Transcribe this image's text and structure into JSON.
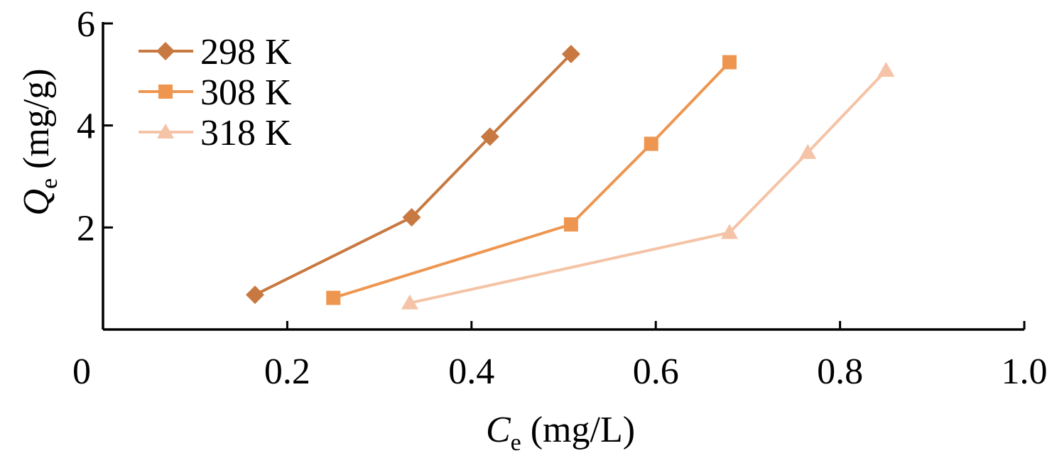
{
  "chart_data": {
    "type": "line",
    "xlabel": {
      "symbol": "C",
      "subscript": "e",
      "unit": " (mg/L)"
    },
    "ylabel": {
      "symbol": "Q",
      "subscript": "e",
      "unit": " (mg/g)"
    },
    "xlim": [
      0,
      1.0
    ],
    "ylim": [
      0,
      6
    ],
    "xticks": [
      0,
      0.2,
      0.4,
      0.6,
      0.8,
      1.0
    ],
    "xtick_labels": [
      "0",
      "0.2",
      "0.4",
      "0.6",
      "0.8",
      "1.0"
    ],
    "yticks": [
      2,
      4,
      6
    ],
    "ytick_labels": [
      "2",
      "4",
      "6"
    ],
    "grid": false,
    "legend_position": "top-left",
    "series": [
      {
        "name": "298 K",
        "color": "#C87941",
        "marker": "diamond",
        "x": [
          0.165,
          0.335,
          0.42,
          0.508
        ],
        "y": [
          0.68,
          2.2,
          3.78,
          5.4
        ]
      },
      {
        "name": "308 K",
        "color": "#EE9650",
        "marker": "square",
        "x": [
          0.25,
          0.508,
          0.595,
          0.68
        ],
        "y": [
          0.62,
          2.06,
          3.64,
          5.24
        ]
      },
      {
        "name": "318 K",
        "color": "#F5C3A6",
        "marker": "triangle",
        "x": [
          0.333,
          0.68,
          0.765,
          0.85
        ],
        "y": [
          0.52,
          1.9,
          3.47,
          5.08
        ]
      }
    ]
  }
}
